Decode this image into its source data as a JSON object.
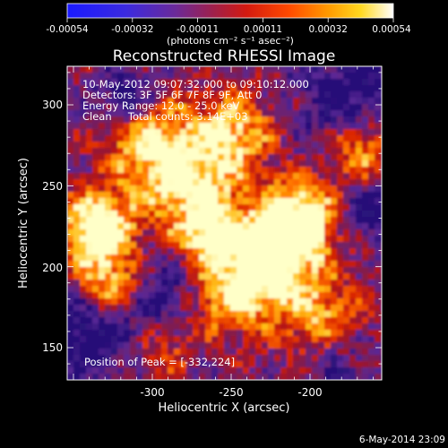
{
  "colorbar": {
    "colormap": "blue-purple-red-orange-yellow-white",
    "tick_labels": [
      "-0.00054",
      "-0.00032",
      "-0.00011",
      "0.00011",
      "0.00032",
      "0.00054"
    ],
    "unit_text": "(photons cm⁻² s⁻¹ asec⁻²)"
  },
  "title": "Reconstructed RHESSI Image",
  "info": {
    "line1": "10-May-2012 09:07:32.000 to 09:10:12.000",
    "line2": "Detectors: 3F 5F 6F 7F 8F 9F, Att 0",
    "line3": "Energy Range: 12.0 - 25.0 keV",
    "line4": "Clean     Total counts: 3.14E+03",
    "peak": "Position of Peak = [-332,224]"
  },
  "axes": {
    "xlabel": "Heliocentric X (arcsec)",
    "ylabel": "Heliocentric Y (arcsec)",
    "x_ticks": [
      "-300",
      "-250",
      "-200"
    ],
    "y_ticks": [
      "150",
      "200",
      "250",
      "300"
    ]
  },
  "footer": {
    "timestamp": "6-May-2014 23:09"
  },
  "colors": {
    "background": "#000000",
    "text": "#ffffff",
    "image_low": "#3b1a8a",
    "image_high": "#ffffe0"
  }
}
